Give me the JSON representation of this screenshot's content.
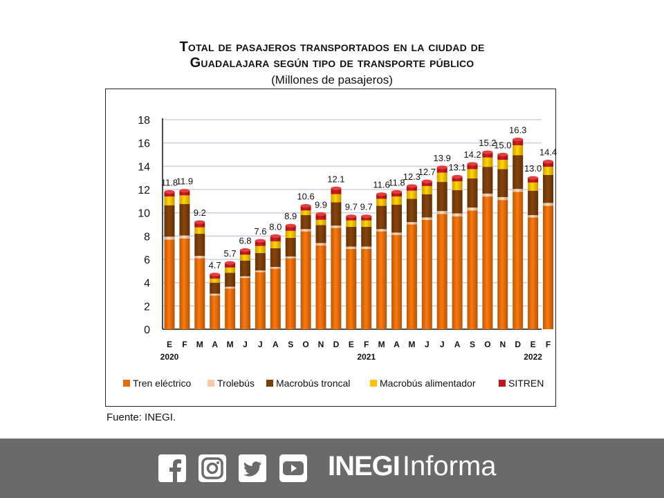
{
  "header": {
    "title_line1": "Total de pasajeros transportados en la ciudad de",
    "title_line2": "Guadalajara según tipo de transporte público",
    "subtitle": "(Millones de pasajeros)"
  },
  "source": "Fuente: INEGI.",
  "footer": {
    "brand_bold": "INEGI",
    "brand_light": "Informa",
    "icons": [
      "facebook-icon",
      "instagram-icon",
      "twitter-icon",
      "youtube-icon"
    ]
  },
  "chart_data": {
    "type": "bar",
    "stacked": true,
    "title": "Total de pasajeros transportados en la ciudad de Guadalajara según tipo de transporte público",
    "subtitle": "(Millones de pasajeros)",
    "ylim": [
      0,
      18
    ],
    "yticks": [
      0,
      2,
      4,
      6,
      8,
      10,
      12,
      14,
      16,
      18
    ],
    "grid": true,
    "legend_position": "bottom",
    "categories": [
      "E",
      "F",
      "M",
      "A",
      "M",
      "J",
      "J",
      "A",
      "S",
      "O",
      "N",
      "D",
      "E",
      "F",
      "M",
      "A",
      "M",
      "J",
      "J",
      "A",
      "S",
      "O",
      "N",
      "D",
      "E",
      "F"
    ],
    "year_labels": [
      {
        "label": "2020",
        "index": 0
      },
      {
        "label": "2021",
        "index": 13
      },
      {
        "label": "2022",
        "index": 24
      }
    ],
    "totals": [
      11.8,
      11.9,
      9.2,
      4.7,
      5.7,
      6.8,
      7.6,
      8.0,
      8.9,
      10.6,
      9.9,
      12.1,
      9.7,
      9.7,
      11.6,
      11.8,
      12.3,
      12.7,
      13.9,
      13.1,
      14.2,
      15.2,
      15.0,
      16.3,
      13.0,
      14.4
    ],
    "total_labels": [
      "11.8",
      "11.9",
      "9.2",
      "4.7",
      "5.7",
      "6.8",
      "7.6",
      "8.0",
      "8.9",
      "10.6",
      "9.9",
      "12.1",
      "9.7",
      "9.7",
      "11.6",
      "11.8",
      "12.3",
      "12.7",
      "13.9",
      "13.1",
      "14.2",
      "15.2",
      "15.0",
      "16.3",
      "13.0",
      "14.4"
    ],
    "series": [
      {
        "name": "Tren eléctrico",
        "color": "#E46C0A",
        "values": [
          7.7,
          7.8,
          6.1,
          2.9,
          3.5,
          4.4,
          4.9,
          5.2,
          6.1,
          8.4,
          7.2,
          8.7,
          6.9,
          6.9,
          8.4,
          8.1,
          9.0,
          9.4,
          9.9,
          9.7,
          10.2,
          11.4,
          11.1,
          11.8,
          9.6,
          10.6
        ]
      },
      {
        "name": "Trolebús",
        "color": "#F9C9A8",
        "values": [
          0.25,
          0.25,
          0.2,
          0.15,
          0.15,
          0.15,
          0.15,
          0.15,
          0.15,
          0.2,
          0.2,
          0.2,
          0.2,
          0.2,
          0.2,
          0.2,
          0.2,
          0.2,
          0.25,
          0.25,
          0.25,
          0.25,
          0.25,
          0.25,
          0.2,
          0.25
        ]
      },
      {
        "name": "Macrobús troncal",
        "color": "#7A3D0A",
        "values": [
          2.7,
          2.7,
          1.9,
          0.95,
          1.2,
          1.35,
          1.5,
          1.6,
          1.6,
          1.2,
          1.55,
          2.0,
          1.7,
          1.7,
          2.0,
          2.4,
          2.0,
          2.0,
          2.5,
          2.0,
          2.5,
          2.3,
          2.4,
          2.9,
          2.1,
          2.4
        ]
      },
      {
        "name": "Macrobús alimentador",
        "color": "#FFC000",
        "values": [
          0.75,
          0.75,
          0.55,
          0.35,
          0.45,
          0.5,
          0.6,
          0.6,
          0.6,
          0.4,
          0.45,
          0.7,
          0.55,
          0.55,
          0.6,
          0.7,
          0.7,
          0.7,
          0.8,
          0.75,
          0.8,
          0.8,
          0.8,
          0.85,
          0.7,
          0.7
        ]
      },
      {
        "name": "SITREN",
        "color": "#C0171C",
        "values": [
          0.4,
          0.4,
          0.45,
          0.35,
          0.4,
          0.4,
          0.45,
          0.45,
          0.45,
          0.4,
          0.5,
          0.5,
          0.35,
          0.35,
          0.4,
          0.4,
          0.4,
          0.4,
          0.45,
          0.4,
          0.45,
          0.45,
          0.45,
          0.5,
          0.4,
          0.45
        ]
      }
    ]
  }
}
